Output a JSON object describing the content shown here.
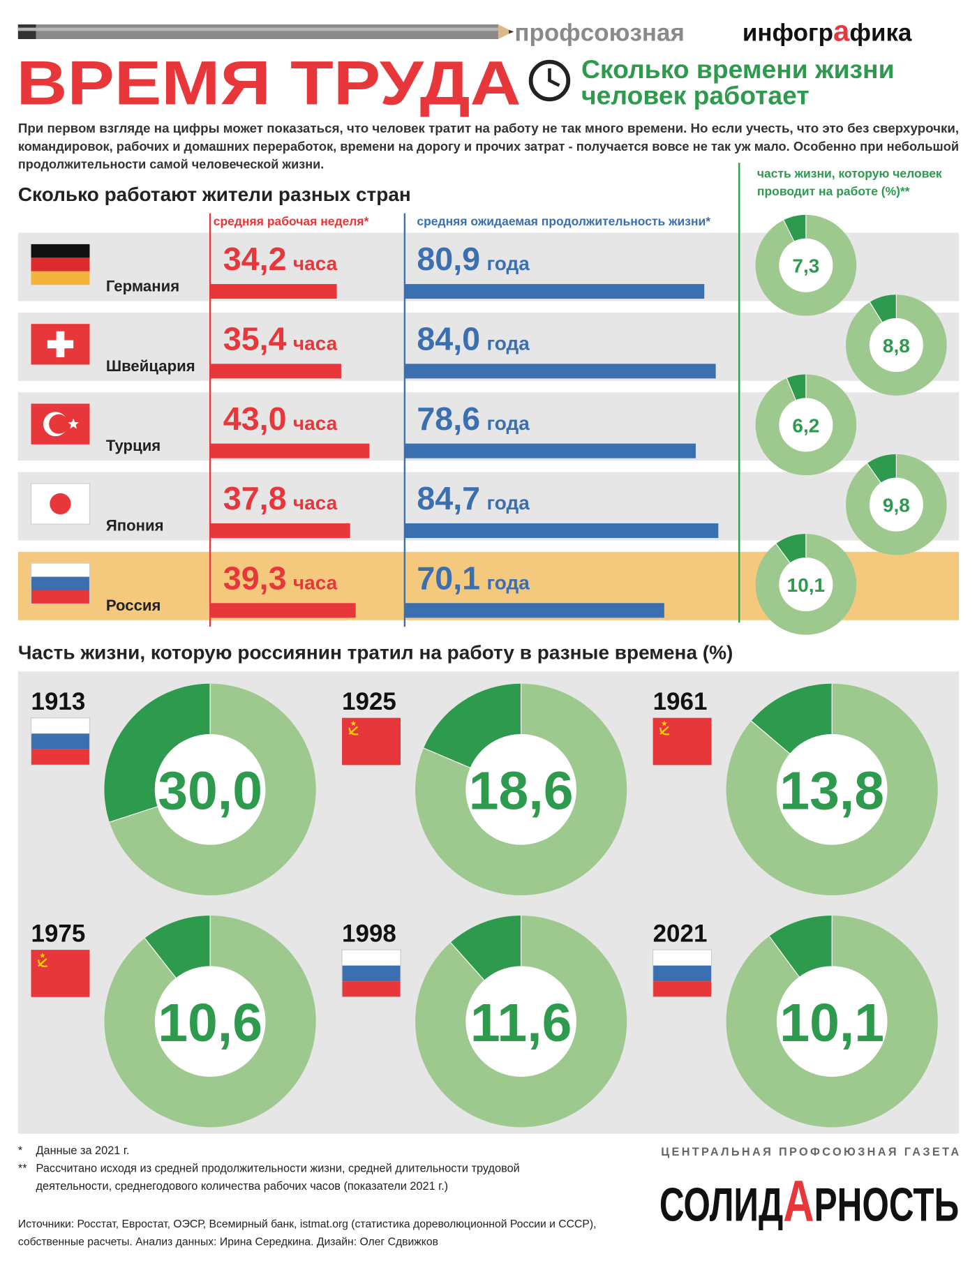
{
  "header": {
    "brand_light": "профсоюзная",
    "brand_bold_parts": [
      "инфогр",
      "а",
      "фика"
    ],
    "title": "ВРЕМЯ ТРУДА",
    "subtitle_lines": [
      "Сколько времени жизни",
      "человек работает"
    ],
    "intro_lines": [
      "При первом взгляде на цифры может показаться, что человек тратит на работу не так много времени. Но если учесть, что это без сверхурочки,",
      "командировок, рабочих и домашних переработок, времени на дорогу и прочих затрат - получается вовсе не так уж мало. Особенно при небольшой",
      "продолжительности самой человеческой жизни."
    ]
  },
  "countries": {
    "title": "Сколько работают жители разных стран",
    "hours_header": "средняя рабочая неделя*",
    "life_header": "средняя ожидаемая продолжительность жизни*",
    "share_header_lines": [
      "часть жизни, которую человек",
      "проводит на работе (%)**"
    ],
    "rows": [
      {
        "name": "Германия",
        "hours": 34.2,
        "hours_label": "34,2",
        "hours_unit": "часа",
        "life": 80.9,
        "life_label": "80,9",
        "life_unit": "года",
        "share": 7.3,
        "share_label": "7,3",
        "highlight": false
      },
      {
        "name": "Швейцария",
        "hours": 35.4,
        "hours_label": "35,4",
        "hours_unit": "часа",
        "life": 84.0,
        "life_label": "84,0",
        "life_unit": "года",
        "share": 8.8,
        "share_label": "8,8",
        "highlight": false
      },
      {
        "name": "Турция",
        "hours": 43.0,
        "hours_label": "43,0",
        "hours_unit": "часа",
        "life": 78.6,
        "life_label": "78,6",
        "life_unit": "года",
        "share": 6.2,
        "share_label": "6,2",
        "highlight": false
      },
      {
        "name": "Япония",
        "hours": 37.8,
        "hours_label": "37,8",
        "hours_unit": "часа",
        "life": 84.7,
        "life_label": "84,7",
        "life_unit": "года",
        "share": 9.8,
        "share_label": "9,8",
        "highlight": false
      },
      {
        "name": "Россия",
        "hours": 39.3,
        "hours_label": "39,3",
        "hours_unit": "часа",
        "life": 70.1,
        "life_label": "70,1",
        "life_unit": "года",
        "share": 10.1,
        "share_label": "10,1",
        "highlight": true
      }
    ]
  },
  "history": {
    "title": "Часть жизни, которую россиянин тратил на работу в разные времена (%)",
    "items": [
      {
        "year": "1913",
        "share": 30.0,
        "share_label": "30,0"
      },
      {
        "year": "1925",
        "share": 18.6,
        "share_label": "18,6"
      },
      {
        "year": "1961",
        "share": 13.8,
        "share_label": "13,8"
      },
      {
        "year": "1975",
        "share": 10.6,
        "share_label": "10,6"
      },
      {
        "year": "1998",
        "share": 11.6,
        "share_label": "11,6"
      },
      {
        "year": "2021",
        "share": 10.1,
        "share_label": "10,1"
      }
    ]
  },
  "footer": {
    "notes": [
      {
        "mark": "*",
        "lines": [
          "Данные за 2021 г."
        ]
      },
      {
        "mark": "**",
        "lines": [
          "Рассчитано исходя из средней продолжительности жизни, средней длительности трудовой",
          "деятельности, среднегодового количества рабочих часов (показатели 2021 г.)"
        ]
      }
    ],
    "sources_lines": [
      "Источники: Росстат, Евростат, ОЭСР, Всемирный банк, istmat.org (статистика дореволюционной России и СССР),",
      "собственные расчеты. Анализ данных: Ирина Середкина. Дизайн: Олег Сдвижков"
    ],
    "newspaper_tagline": "ЦЕНТРАЛЬНАЯ ПРОФСОЮЗНАЯ ГАЗЕТА",
    "newspaper_parts": [
      "СОЛИД",
      "А",
      "РНОСТЬ"
    ]
  }
}
